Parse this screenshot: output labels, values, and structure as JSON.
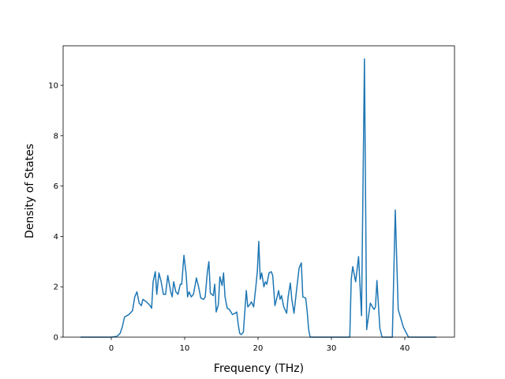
{
  "chart_data": {
    "type": "line",
    "xlabel": "Frequency (THz)",
    "ylabel": "Density of States",
    "color": "#1f77b4",
    "x": [
      -4.19,
      0,
      0.75,
      1.2,
      1.5,
      1.8,
      2.4,
      2.9,
      3.2,
      3.5,
      3.8,
      4.1,
      4.3,
      4.8,
      5.3,
      5.5,
      5.7,
      6.0,
      6.2,
      6.5,
      6.8,
      7.1,
      7.4,
      7.7,
      8.1,
      8.3,
      8.5,
      8.8,
      9.1,
      9.4,
      9.6,
      9.9,
      10.2,
      10.4,
      10.6,
      10.9,
      11.2,
      11.6,
      11.9,
      12.2,
      12.6,
      12.8,
      13.1,
      13.3,
      13.5,
      13.9,
      14.1,
      14.3,
      14.6,
      14.8,
      15.1,
      15.3,
      15.5,
      15.8,
      16.1,
      16.5,
      16.9,
      17.1,
      17.3,
      17.5,
      17.7,
      18.0,
      18.4,
      18.6,
      18.9,
      19.1,
      19.4,
      19.7,
      19.9,
      20.1,
      20.3,
      20.5,
      20.8,
      21.0,
      21.2,
      21.5,
      21.8,
      22.0,
      22.3,
      22.6,
      22.8,
      23.0,
      23.2,
      23.5,
      23.9,
      24.1,
      24.4,
      24.6,
      24.9,
      25.3,
      25.6,
      25.9,
      26.1,
      26.5,
      26.7,
      26.9,
      27.1,
      32.5,
      32.7,
      32.9,
      33.3,
      33.7,
      34.1,
      34.5,
      34.8,
      35.3,
      35.8,
      36.0,
      36.2,
      36.6,
      36.9,
      38.3,
      38.7,
      39.1,
      39.8,
      40.5,
      44.3
    ],
    "values": [
      0,
      0,
      0.03,
      0.15,
      0.4,
      0.8,
      0.9,
      1.05,
      1.6,
      1.8,
      1.35,
      1.25,
      1.5,
      1.4,
      1.25,
      1.15,
      2.2,
      2.6,
      1.7,
      2.55,
      2.2,
      1.7,
      1.7,
      2.45,
      1.8,
      1.6,
      2.2,
      1.8,
      1.7,
      2.1,
      2.1,
      3.25,
      2.5,
      1.6,
      1.8,
      1.6,
      1.7,
      2.35,
      2.0,
      1.55,
      1.5,
      1.6,
      2.6,
      3.0,
      1.75,
      1.65,
      2.1,
      1.0,
      1.3,
      2.4,
      2.05,
      2.55,
      1.6,
      1.15,
      1.1,
      0.9,
      0.95,
      1.0,
      0.5,
      0.15,
      0.1,
      0.2,
      1.85,
      1.2,
      1.3,
      1.4,
      1.2,
      2.0,
      2.6,
      3.8,
      2.3,
      2.55,
      2.0,
      2.2,
      2.1,
      2.55,
      2.6,
      2.45,
      1.25,
      1.6,
      1.85,
      1.5,
      1.65,
      1.2,
      0.95,
      1.6,
      2.15,
      1.5,
      0.95,
      2.0,
      2.75,
      2.95,
      1.6,
      1.55,
      1.0,
      0.3,
      0,
      0,
      2.3,
      2.8,
      2.2,
      3.2,
      0.85,
      11.05,
      0.3,
      1.35,
      1.1,
      1.2,
      2.25,
      0.35,
      0,
      0,
      5.05,
      1.1,
      0.4,
      0,
      0
    ],
    "xlim": [
      -6.56,
      46.77
    ],
    "xticks": [
      0,
      10,
      20,
      30,
      40
    ],
    "ylim": [
      0,
      11.57
    ],
    "yticks": [
      0,
      2,
      4,
      6,
      8,
      10
    ]
  }
}
